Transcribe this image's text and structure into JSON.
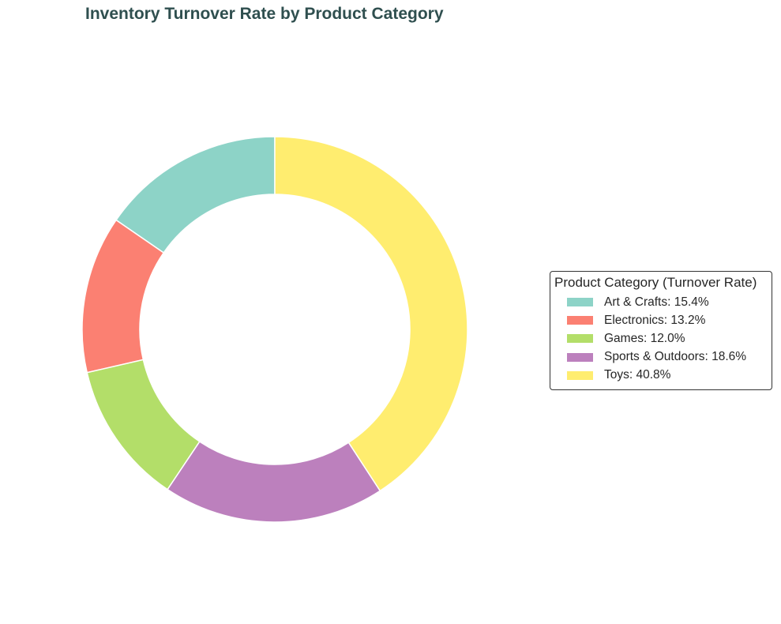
{
  "chart_data": {
    "type": "pie",
    "variant": "donut",
    "title": "Inventory Turnover Rate by Product Category",
    "categories": [
      "Art & Crafts",
      "Electronics",
      "Games",
      "Sports & Outdoors",
      "Toys"
    ],
    "values": [
      15.4,
      13.2,
      12.0,
      18.6,
      40.8
    ],
    "colors": [
      "#8dd3c7",
      "#fb8072",
      "#b3de69",
      "#bc80bd",
      "#ffed6f"
    ],
    "legend": {
      "title": "Product Category (Turnover Rate)",
      "placement": "right",
      "entries": [
        "Art & Crafts: 15.4%",
        "Electronics: 13.2%",
        "Games: 12.0%",
        "Sports & Outdoors: 18.6%",
        "Toys: 40.8%"
      ]
    },
    "start_angle": "top",
    "direction": "counterclockwise"
  }
}
